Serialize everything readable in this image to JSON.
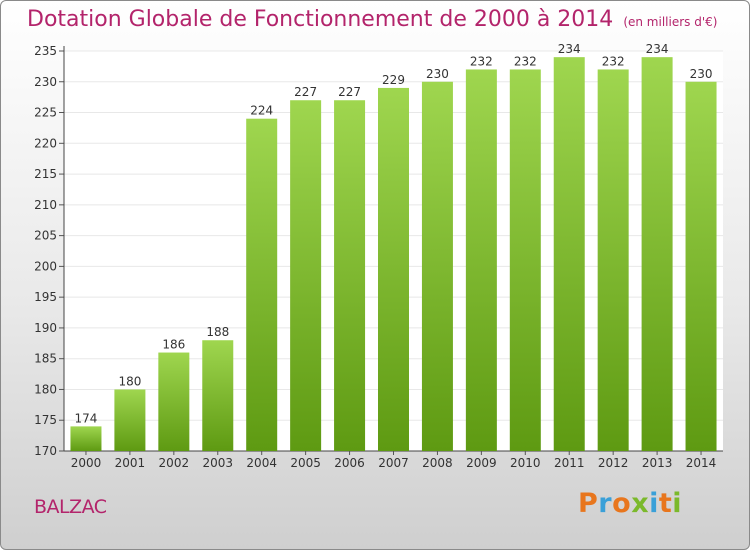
{
  "header": {
    "title": "Dotation Globale de Fonctionnement de 2000 à 2014",
    "unit": "(en milliers d'€)"
  },
  "footer": {
    "commune": "BALZAC",
    "logo_letters": [
      "P",
      "r",
      "o",
      "x",
      "i",
      "t",
      "i"
    ]
  },
  "colors": {
    "title": "#b3246b",
    "bar_top": "#9fd64f",
    "bar_bottom": "#5e9a12",
    "grid": "#e8e8e8",
    "logo": [
      "#e8761d",
      "#3aa0d8",
      "#e8761d",
      "#7bb92b",
      "#3aa0d8",
      "#e8761d",
      "#7bb92b"
    ]
  },
  "chart_data": {
    "type": "bar",
    "categories": [
      "2000",
      "2001",
      "2002",
      "2003",
      "2004",
      "2005",
      "2006",
      "2007",
      "2008",
      "2009",
      "2010",
      "2011",
      "2012",
      "2013",
      "2014"
    ],
    "values": [
      174,
      180,
      186,
      188,
      224,
      227,
      227,
      229,
      230,
      232,
      232,
      234,
      232,
      234,
      230
    ],
    "title": "Dotation Globale de Fonctionnement de 2000 à 2014",
    "subtitle": "(en milliers d'€)",
    "ylim": [
      170,
      235
    ],
    "yticks": [
      170,
      175,
      180,
      185,
      190,
      195,
      200,
      205,
      210,
      215,
      220,
      225,
      230,
      235
    ],
    "grid": true
  }
}
